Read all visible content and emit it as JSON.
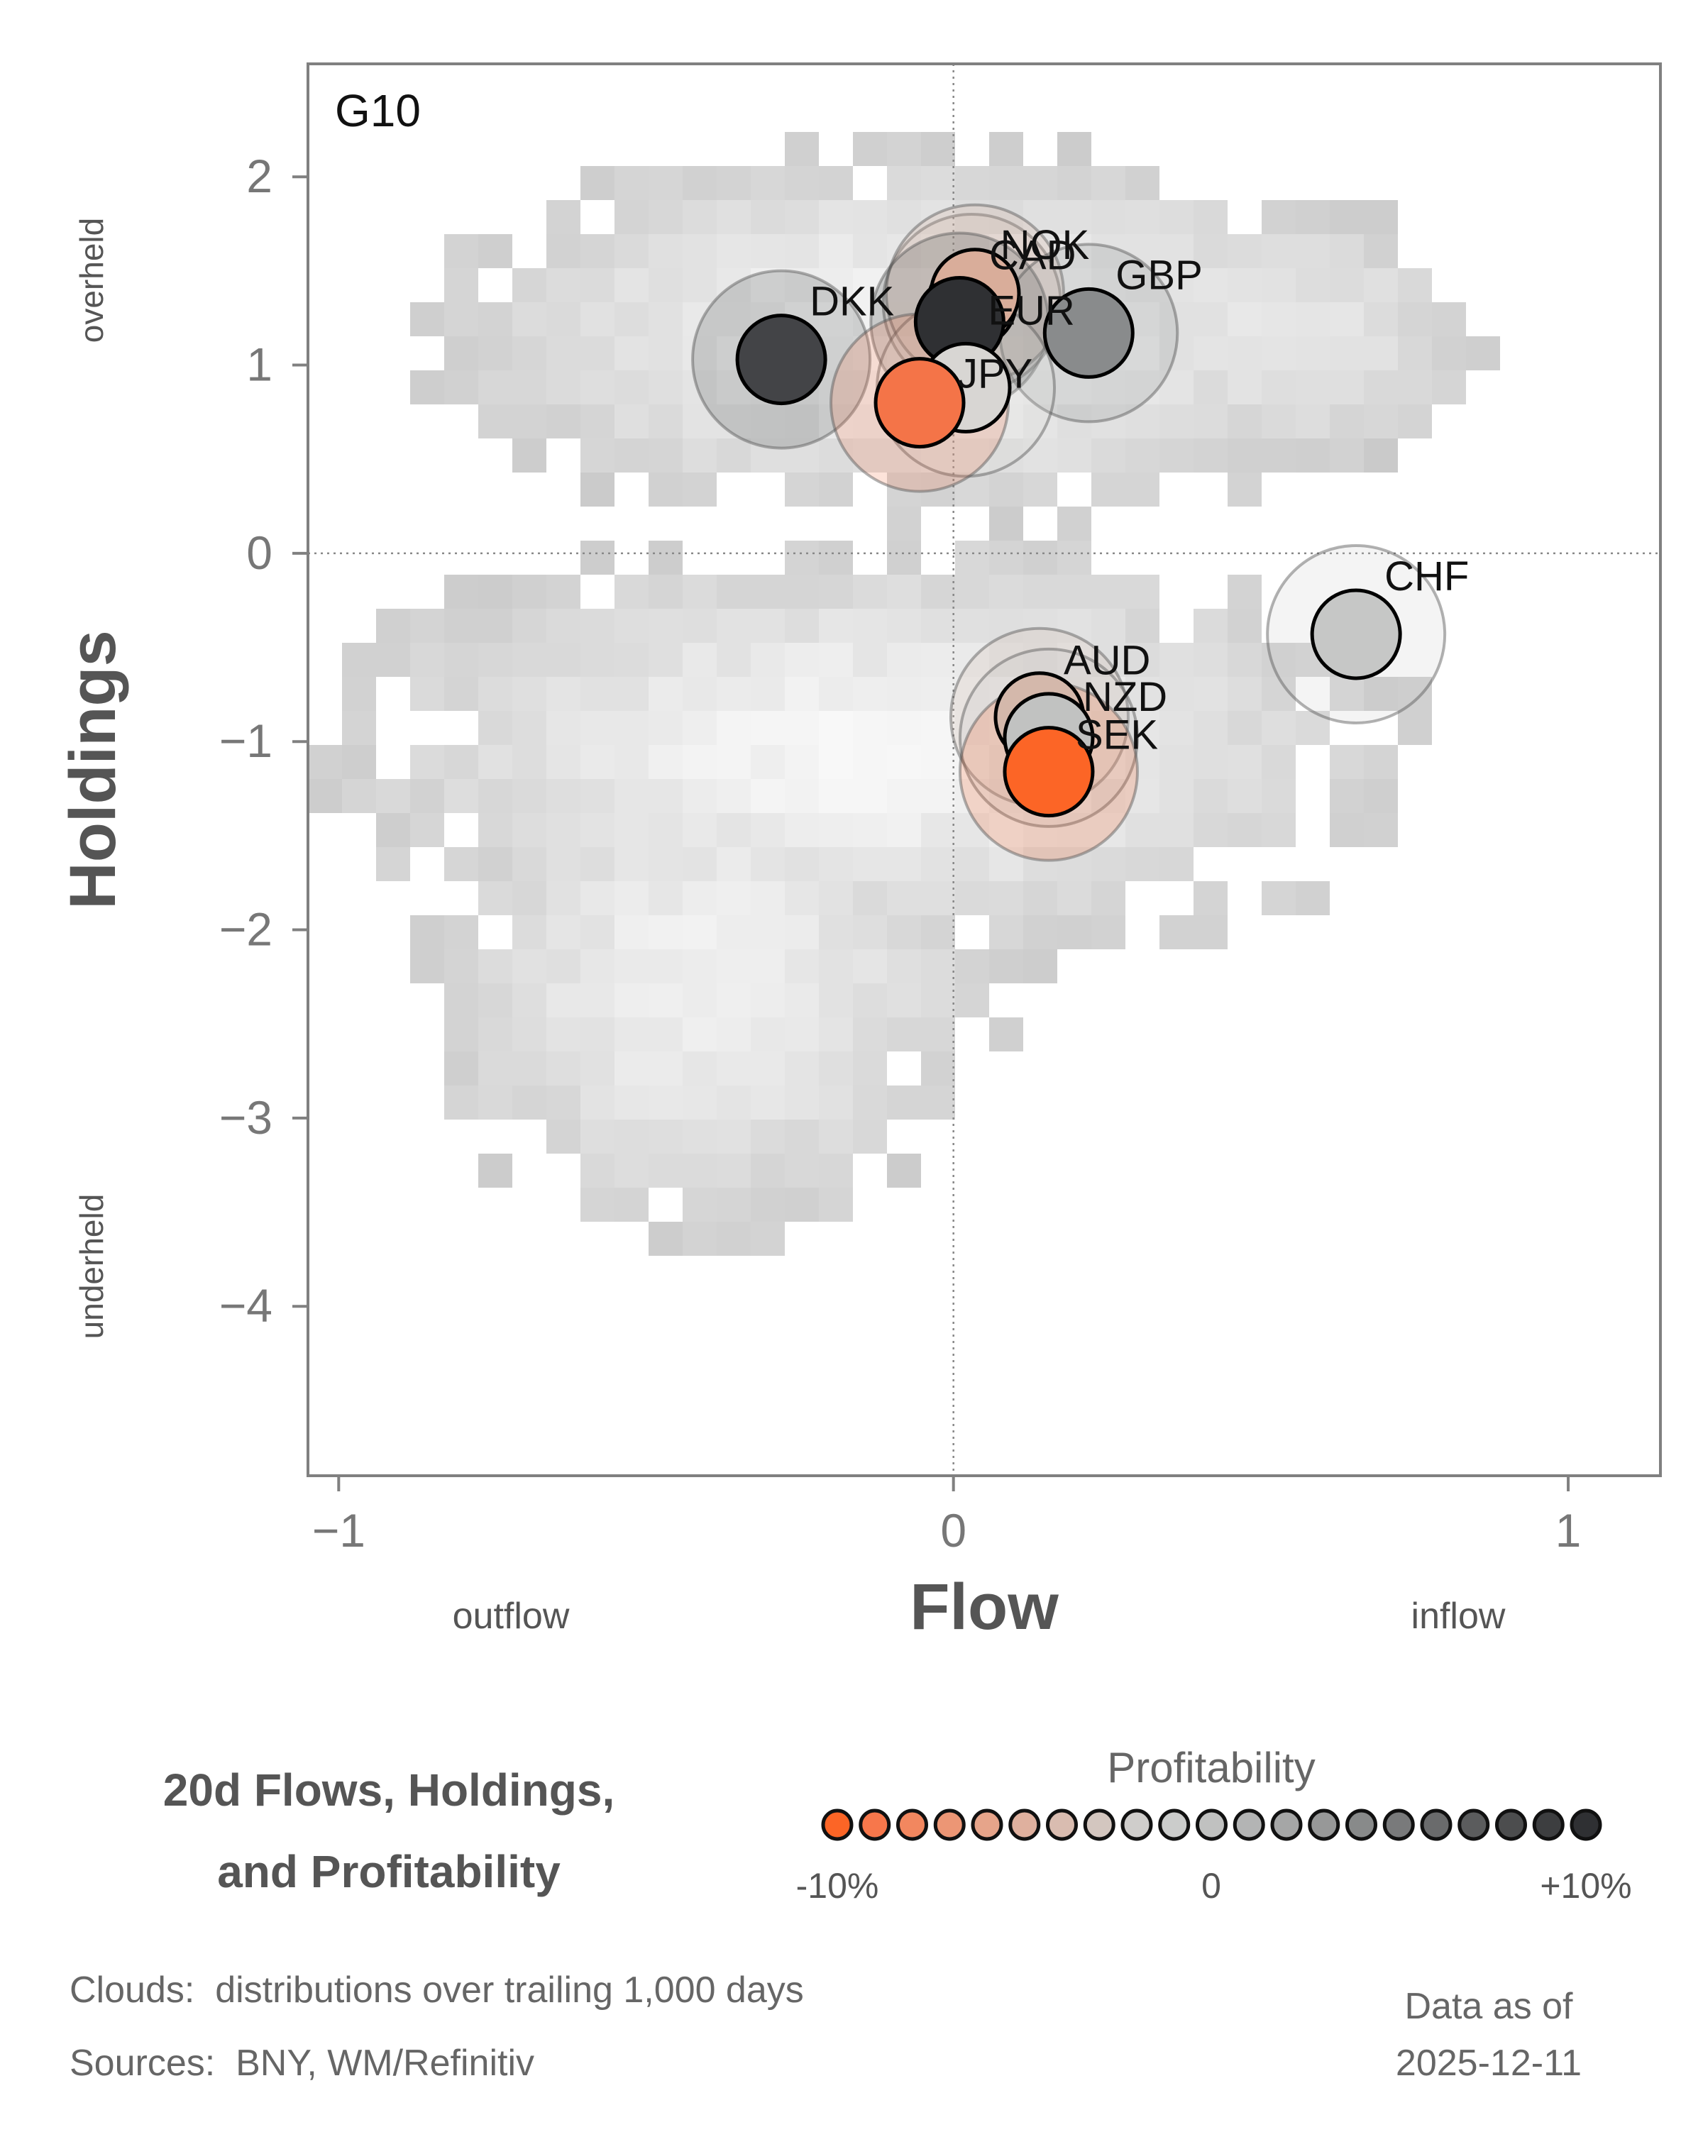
{
  "chart_data": {
    "type": "scatter",
    "panel_label": "G10",
    "xlabel": "Flow",
    "ylabel": "Holdings",
    "xlim": [
      -1.05,
      1.15
    ],
    "ylim": [
      -4.9,
      2.6
    ],
    "xticks": [
      {
        "value": -1,
        "label": "−1"
      },
      {
        "value": 0,
        "label": "0"
      },
      {
        "value": 1,
        "label": "1"
      }
    ],
    "yticks": [
      {
        "value": 2,
        "label": "2"
      },
      {
        "value": 1,
        "label": "1"
      },
      {
        "value": 0,
        "label": "0"
      },
      {
        "value": -1,
        "label": "−1"
      },
      {
        "value": -2,
        "label": "−2"
      },
      {
        "value": -3,
        "label": "−3"
      },
      {
        "value": -4,
        "label": "−4"
      }
    ],
    "x_side_labels": {
      "left": "outflow",
      "right": "inflow"
    },
    "y_side_labels": {
      "top": "overheld",
      "bottom": "underheld"
    },
    "reference_lines": {
      "x": 0,
      "y": 0
    },
    "points": [
      {
        "label": "DKK",
        "flow": -0.28,
        "holdings": 1.03,
        "profitability": 9,
        "color": "#434447"
      },
      {
        "label": "NOK",
        "flow": 0.03,
        "holdings": 1.33,
        "profitability": -3,
        "color": "#d3c0b6"
      },
      {
        "label": "CAD",
        "flow": 0.035,
        "holdings": 1.38,
        "profitability": -4,
        "color": "#d9ad9a"
      },
      {
        "label": "EUR",
        "flow": 0.01,
        "holdings": 1.23,
        "profitability": 10,
        "color": "#2f3033"
      },
      {
        "label": "GBP",
        "flow": 0.22,
        "holdings": 1.17,
        "profitability": 6,
        "color": "#898b8c"
      },
      {
        "label": "JPY",
        "flow": 0.02,
        "holdings": 0.88,
        "profitability": 0,
        "color": "#d8d6d3"
      },
      {
        "label": "JPY-2",
        "flow": -0.055,
        "holdings": 0.8,
        "profitability": -8,
        "color": "#f47448",
        "hide_label": true
      },
      {
        "label": "CHF",
        "flow": 0.655,
        "holdings": -0.43,
        "profitability": 1,
        "color": "#c6c7c6"
      },
      {
        "label": "AUD",
        "flow": 0.14,
        "holdings": -0.87,
        "profitability": -3,
        "color": "#d4b8ab"
      },
      {
        "label": "NZD",
        "flow": 0.155,
        "holdings": -0.98,
        "profitability": 2,
        "color": "#c1c2c1"
      },
      {
        "label": "SEK",
        "flow": 0.155,
        "holdings": -1.16,
        "profitability": -10,
        "color": "#fc6526"
      }
    ],
    "legend": {
      "title": "Profitability",
      "tick_labels": [
        "-10%",
        "0",
        "+10%"
      ],
      "swatches": [
        "#fc6526",
        "#f7774b",
        "#f2875f",
        "#ec9675",
        "#e6a48a",
        "#dfb09e",
        "#d9bcb0",
        "#d3c6bf",
        "#cfcdcb",
        "#cbcccb",
        "#c0c1c0",
        "#b3b4b4",
        "#a5a6a6",
        "#979898",
        "#888a8a",
        "#797a7b",
        "#6a6b6c",
        "#5b5c5d",
        "#4c4d4e",
        "#3d3e40",
        "#2f3033"
      ]
    }
  },
  "footer": {
    "title_line1": "20d Flows, Holdings,",
    "title_line2": "and Profitability",
    "clouds_note": "Clouds:  distributions over trailing 1,000 days",
    "sources_note": "Sources:  BNY, WM/Refinitiv",
    "data_as_of_label": "Data as of",
    "data_as_of_date": "2025-12-11"
  }
}
